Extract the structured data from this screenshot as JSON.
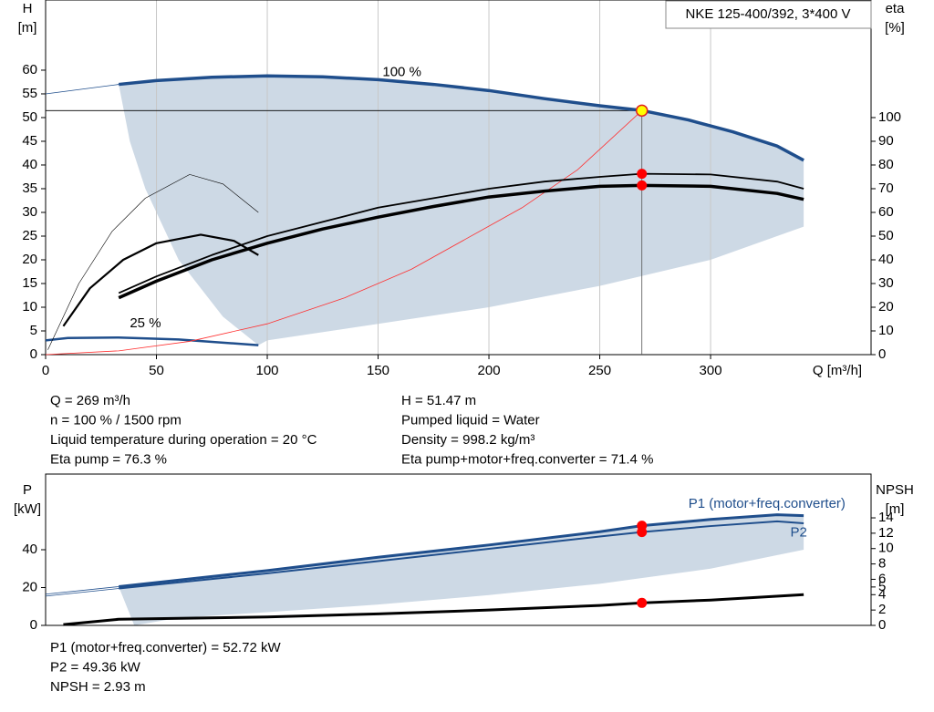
{
  "title": "NKE 125-400/392, 3*400 V",
  "info_top_left": [
    "Q = 269 m³/h",
    "n = 100 % / 1500 rpm",
    "Liquid temperature during operation = 20 °C",
    "Eta pump = 76.3 %"
  ],
  "info_top_right": [
    "H = 51.47 m",
    "Pumped liquid = Water",
    "Density = 998.2 kg/m³",
    "Eta pump+motor+freq.converter = 71.4 %"
  ],
  "info_bottom": [
    "P1 (motor+freq.converter) = 52.72 kW",
    "P2 = 49.36 kW",
    "NPSH = 2.93 m"
  ],
  "chart_data": [
    {
      "type": "line",
      "y_label": [
        "H",
        "[m]"
      ],
      "y2_label": [
        "eta",
        "[%]"
      ],
      "x_label": "Q [m³/h]",
      "xlim": [
        0,
        372.4
      ],
      "xticks": [
        0,
        50,
        100,
        150,
        200,
        250,
        300
      ],
      "ylim": [
        0,
        74.8
      ],
      "yticks": [
        0,
        5,
        10,
        15,
        20,
        25,
        30,
        35,
        40,
        45,
        50,
        55,
        60
      ],
      "y2lim": [
        0,
        149.6
      ],
      "y2ticks": [
        0,
        10,
        20,
        30,
        40,
        50,
        60,
        70,
        80,
        90,
        100
      ],
      "grid": true,
      "region": {
        "color": "#cdd9e5",
        "x": [
          33,
          50,
          75,
          100,
          125,
          150,
          175,
          200,
          225,
          250,
          269,
          290,
          310,
          330,
          342,
          342,
          300,
          250,
          200,
          150,
          100,
          96,
          80,
          60,
          45,
          38
        ],
        "values": [
          57,
          57.8,
          58.5,
          58.8,
          58.6,
          58,
          57,
          55.7,
          54,
          52.5,
          51.5,
          49.5,
          47,
          44,
          41,
          27,
          20,
          14.5,
          10,
          6.5,
          3,
          2,
          8,
          20,
          35,
          45
        ]
      },
      "series": [
        {
          "color": "#1f4e8c",
          "line_width": 3.5,
          "x": [
            33,
            50,
            75,
            100,
            125,
            150,
            175,
            200,
            225,
            250,
            269,
            290,
            310,
            330,
            342
          ],
          "values": [
            57,
            57.8,
            58.5,
            58.8,
            58.6,
            58,
            57,
            55.7,
            54,
            52.5,
            51.5,
            49.5,
            47,
            44,
            41
          ]
        },
        {
          "color": "#1f4e8c",
          "line_width": 0.8,
          "x": [
            0,
            33
          ],
          "values": [
            55,
            57
          ]
        },
        {
          "color": "#1f4e8c",
          "line_width": 2.5,
          "x": [
            0,
            10,
            33,
            60,
            96
          ],
          "values": [
            3,
            3.5,
            3.6,
            3.2,
            2
          ]
        },
        {
          "color": "#ff3030",
          "line_width": 0.8,
          "x": [
            0,
            33,
            65,
            100,
            135,
            165,
            190,
            215,
            240,
            269
          ],
          "values": [
            0,
            0.8,
            2.8,
            6.5,
            12,
            18,
            24.5,
            31,
            39,
            51.47
          ]
        },
        {
          "color": "#000000",
          "line_width": 1.8,
          "axis": "y2",
          "x": [
            33,
            50,
            75,
            100,
            125,
            150,
            175,
            200,
            225,
            250,
            269,
            300,
            330,
            342
          ],
          "values": [
            26,
            33,
            42,
            50,
            56,
            62,
            66,
            70,
            73,
            75,
            76.3,
            76,
            73,
            70
          ]
        },
        {
          "color": "#000000",
          "line_width": 3.5,
          "axis": "y2",
          "x": [
            33,
            50,
            75,
            100,
            125,
            150,
            175,
            200,
            225,
            250,
            269,
            300,
            330,
            342
          ],
          "values": [
            24,
            31,
            40,
            47,
            53,
            58,
            62.5,
            66.5,
            69,
            71,
            71.4,
            71,
            68,
            65.5
          ]
        },
        {
          "color": "#000000",
          "line_width": 0.6,
          "axis": "y2",
          "x": [
            1,
            15,
            30,
            45,
            65,
            80,
            96
          ],
          "values": [
            2,
            30,
            52,
            66,
            76,
            72,
            60
          ]
        },
        {
          "color": "#000000",
          "line_width": 2.2,
          "axis": "y2",
          "x": [
            8,
            20,
            35,
            50,
            70,
            85,
            96
          ],
          "values": [
            12,
            28,
            40,
            47,
            50.6,
            48,
            42
          ]
        }
      ],
      "points": [
        {
          "x": 269,
          "y": 76.3,
          "axis": "y2",
          "color": "#ff0000"
        },
        {
          "x": 269,
          "y": 71.4,
          "axis": "y2",
          "color": "#ff0000"
        }
      ],
      "operating_point": {
        "x": 269,
        "y": 51.47,
        "color": "#ffff00"
      },
      "annotations": [
        {
          "text": "100 %",
          "x": 152,
          "y": 59.5
        },
        {
          "text": "25 %",
          "x": 38,
          "y": 6.5
        }
      ]
    },
    {
      "type": "line",
      "y_label": [
        "P",
        "[kW]"
      ],
      "y2_label": [
        "NPSH",
        "[m]"
      ],
      "xlim": [
        0,
        372.4
      ],
      "ylim": [
        0,
        80
      ],
      "yticks": [
        0,
        20,
        40
      ],
      "y2lim": [
        0,
        19.7
      ],
      "y2ticks": [
        0,
        2,
        4,
        5,
        6,
        8,
        10,
        12,
        14
      ],
      "region": {
        "color": "#cdd9e5",
        "x": [
          33,
          100,
          150,
          200,
          250,
          269,
          300,
          330,
          342,
          342,
          300,
          250,
          200,
          150,
          100,
          60,
          40
        ],
        "values": [
          20.5,
          29,
          36,
          42.5,
          49.5,
          52.72,
          56,
          58.5,
          58,
          40,
          30,
          22,
          16,
          11,
          7,
          4,
          0
        ]
      },
      "series": [
        {
          "color": "#1f4e8c",
          "line_width": 3,
          "x": [
            33,
            100,
            150,
            200,
            250,
            269,
            300,
            330,
            342
          ],
          "values": [
            20.5,
            29,
            36,
            42.5,
            49.5,
            52.72,
            56,
            58.5,
            58
          ]
        },
        {
          "color": "#1f4e8c",
          "line_width": 0.8,
          "x": [
            0,
            33
          ],
          "values": [
            16.5,
            20.5
          ]
        },
        {
          "color": "#1f4e8c",
          "line_width": 2,
          "x": [
            33,
            100,
            150,
            200,
            250,
            269,
            300,
            330,
            342
          ],
          "values": [
            19.5,
            27.5,
            34,
            40.5,
            47,
            49.36,
            52.5,
            55,
            54
          ]
        },
        {
          "color": "#1f4e8c",
          "line_width": 0.8,
          "x": [
            0,
            33
          ],
          "values": [
            15.5,
            19.5
          ]
        },
        {
          "color": "#000000",
          "line_width": 3,
          "axis": "y2",
          "x": [
            8,
            33,
            100,
            150,
            200,
            250,
            269,
            300,
            342
          ],
          "values": [
            0.1,
            0.8,
            1.1,
            1.5,
            2,
            2.6,
            2.93,
            3.3,
            4
          ]
        }
      ],
      "points": [
        {
          "x": 269,
          "y": 52.72,
          "color": "#ff0000"
        },
        {
          "x": 269,
          "y": 49.36,
          "color": "#ff0000"
        },
        {
          "x": 269,
          "y": 2.93,
          "axis": "y2",
          "color": "#ff0000"
        }
      ],
      "labels": [
        {
          "text": "P1 (motor+freq.converter)",
          "x": 290,
          "y": 64
        },
        {
          "text": "P2",
          "x": 336,
          "y": 49
        }
      ]
    }
  ]
}
